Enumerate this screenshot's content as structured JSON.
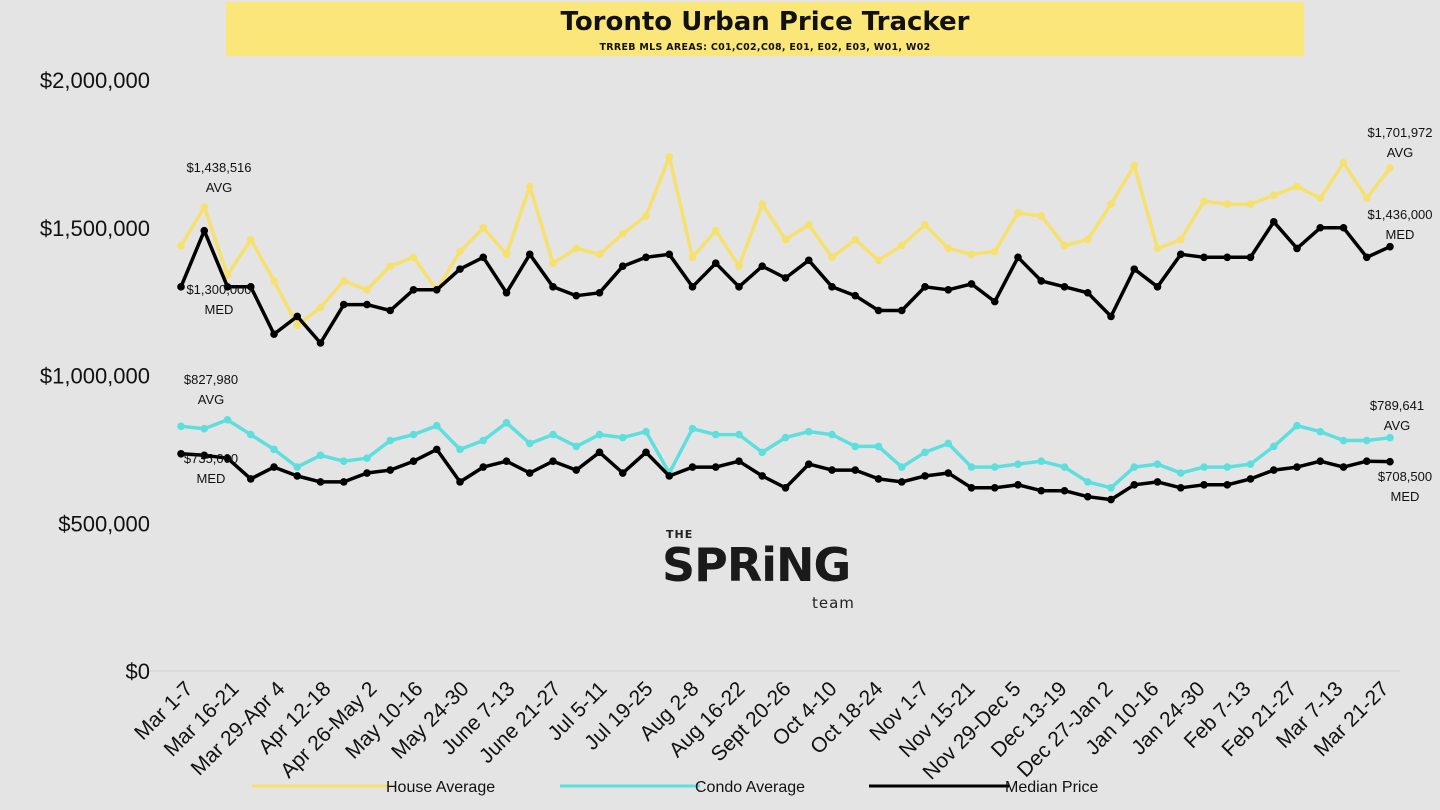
{
  "header": {
    "title": "Toronto Urban Price Tracker",
    "subtitle": "TRREB MLS AREAS: C01,C02,C08, E01, E02, E03, W01, W02"
  },
  "brand": {
    "the": "THE",
    "name": "SPRiNG",
    "team": "team"
  },
  "colors": {
    "house": "#f6e06e",
    "condo": "#5fdede",
    "median": "#000000",
    "background": "#e4e4e4",
    "title_box": "#fbe67a"
  },
  "chart_data": {
    "type": "line",
    "title": "Toronto Urban Price Tracker",
    "subtitle": "TRREB MLS AREAS: C01,C02,C08, E01, E02, E03, W01, W02",
    "xlabel": "",
    "ylabel": "",
    "ylim": [
      0,
      2000000
    ],
    "y_ticks": [
      0,
      500000,
      1000000,
      1500000,
      2000000
    ],
    "y_tick_labels": [
      "$0",
      "$500,000",
      "$1,000,000",
      "$1,500,000",
      "$2,000,000"
    ],
    "grid": false,
    "legend_position": "bottom",
    "x_tick_labels": [
      "Mar 1-7",
      "Mar 16-21",
      "Mar 29-Apr 4",
      "Apr 12-18",
      "Apr 26-May 2",
      "May 10-16",
      "May 24-30",
      "June 7-13",
      "June 21-27",
      "Jul 5-11",
      "Jul 19-25",
      "Aug 2-8",
      "Aug 16-22",
      "Sept 20-26",
      "Oct 4-10",
      "Oct 18-24",
      "Nov 1-7",
      "Nov 15-21",
      "Nov 29-Dec 5",
      "Dec 13-19",
      "Dec 27-Jan 2",
      "Jan 10-16",
      "Jan 24-30",
      "Feb 7-13",
      "Feb 21-27",
      "Mar 7-13",
      "Mar 21-27"
    ],
    "series": [
      {
        "name": "House Average",
        "color": "#f6e06e",
        "values": [
          1438516,
          1570000,
          1340000,
          1460000,
          1320000,
          1170000,
          1230000,
          1320000,
          1290000,
          1370000,
          1400000,
          1290000,
          1420000,
          1500000,
          1410000,
          1640000,
          1380000,
          1430000,
          1410000,
          1480000,
          1540000,
          1740000,
          1400000,
          1490000,
          1370000,
          1580000,
          1460000,
          1510000,
          1400000,
          1460000,
          1390000,
          1440000,
          1510000,
          1430000,
          1410000,
          1420000,
          1550000,
          1540000,
          1440000,
          1460000,
          1580000,
          1710000,
          1430000,
          1460000,
          1590000,
          1580000,
          1580000,
          1610000,
          1640000,
          1600000,
          1720000,
          1600000,
          1701972
        ]
      },
      {
        "name": "Median Price",
        "color": "#000000",
        "values": [
          1300000,
          1490000,
          1300000,
          1300000,
          1140000,
          1200000,
          1110000,
          1240000,
          1240000,
          1220000,
          1290000,
          1290000,
          1360000,
          1400000,
          1280000,
          1410000,
          1300000,
          1270000,
          1280000,
          1370000,
          1400000,
          1410000,
          1300000,
          1380000,
          1300000,
          1370000,
          1330000,
          1390000,
          1300000,
          1270000,
          1220000,
          1220000,
          1300000,
          1290000,
          1310000,
          1250000,
          1400000,
          1320000,
          1300000,
          1280000,
          1200000,
          1360000,
          1300000,
          1410000,
          1400000,
          1400000,
          1400000,
          1520000,
          1430000,
          1500000,
          1500000,
          1400000,
          1436000
        ]
      },
      {
        "name": "Condo Average",
        "color": "#5fdede",
        "values": [
          827980,
          820000,
          850000,
          800000,
          750000,
          690000,
          730000,
          710000,
          720000,
          780000,
          800000,
          830000,
          750000,
          780000,
          840000,
          770000,
          800000,
          760000,
          800000,
          790000,
          810000,
          670000,
          820000,
          800000,
          800000,
          740000,
          790000,
          810000,
          800000,
          760000,
          760000,
          690000,
          740000,
          770000,
          690000,
          690000,
          700000,
          710000,
          690000,
          640000,
          620000,
          690000,
          700000,
          670000,
          690000,
          690000,
          700000,
          760000,
          830000,
          810000,
          780000,
          780000,
          789641
        ]
      },
      {
        "name": "Median Price",
        "color": "#000000",
        "values": [
          735000,
          730000,
          720000,
          650000,
          690000,
          660000,
          640000,
          640000,
          670000,
          680000,
          710000,
          750000,
          640000,
          690000,
          710000,
          670000,
          710000,
          680000,
          740000,
          670000,
          740000,
          660000,
          690000,
          690000,
          710000,
          660000,
          620000,
          700000,
          680000,
          680000,
          650000,
          640000,
          660000,
          670000,
          620000,
          620000,
          630000,
          610000,
          610000,
          590000,
          580000,
          630000,
          640000,
          620000,
          630000,
          630000,
          650000,
          680000,
          690000,
          710000,
          690000,
          710000,
          708500
        ]
      }
    ],
    "annotations": [
      {
        "text": "$1,438,516",
        "sub": "AVG"
      },
      {
        "text": "$1,300,000",
        "sub": "MED"
      },
      {
        "text": "$827,980",
        "sub": "AVG"
      },
      {
        "text": "$735,000",
        "sub": "MED"
      },
      {
        "text": "$1,701,972",
        "sub": "AVG"
      },
      {
        "text": "$1,436,000",
        "sub": "MED"
      },
      {
        "text": "$789,641",
        "sub": "AVG"
      },
      {
        "text": "$708,500",
        "sub": "MED"
      }
    ],
    "legend": [
      {
        "label": "House Average",
        "color": "#f6e06e"
      },
      {
        "label": "Condo Average",
        "color": "#5fdede"
      },
      {
        "label": "Median Price",
        "color": "#000000"
      }
    ]
  }
}
